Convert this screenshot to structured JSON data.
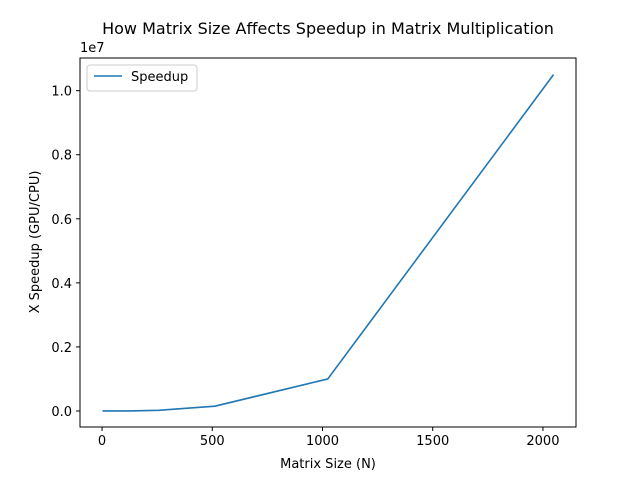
{
  "chart_data": {
    "type": "line",
    "title": "How Matrix Size Affects Speedup in Matrix Multiplication",
    "xlabel": "Matrix Size (N)",
    "ylabel": "X Speedup (GPU/CPU)",
    "y_offset_label": "1e7",
    "xlim": [
      -100,
      2150
    ],
    "ylim": [
      -500000,
      11020000
    ],
    "x_ticks": [
      0,
      500,
      1000,
      1500,
      2000
    ],
    "x_tick_labels": [
      "0",
      "500",
      "1000",
      "1500",
      "2000"
    ],
    "y_ticks": [
      0,
      2000000,
      4000000,
      6000000,
      8000000,
      10000000
    ],
    "y_tick_labels": [
      "0.0",
      "0.2",
      "0.4",
      "0.6",
      "0.8",
      "1.0"
    ],
    "grid": false,
    "legend": {
      "position": "upper-left"
    },
    "series": [
      {
        "name": "Speedup",
        "color": "#1f77b4",
        "x": [
          2,
          4,
          8,
          16,
          32,
          64,
          128,
          256,
          512,
          1024,
          2048
        ],
        "values": [
          0,
          0,
          0,
          0,
          0,
          0,
          2000,
          20000,
          150000,
          1000000,
          10500000
        ]
      }
    ]
  }
}
